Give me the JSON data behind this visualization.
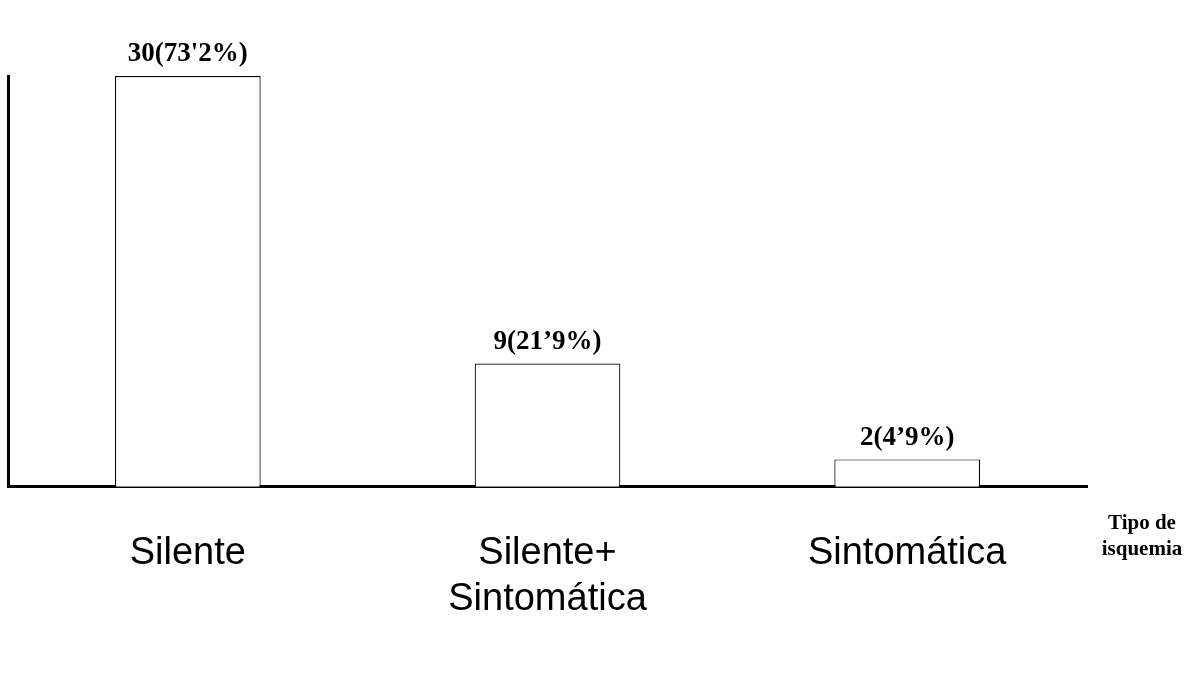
{
  "chart_data": {
    "type": "bar",
    "xlabel": "Tipo de\nisquemia",
    "categories": [
      "Silente",
      "Silente+\nSintomática",
      "Sintomática"
    ],
    "values": [
      30,
      9,
      2
    ],
    "value_labels": [
      "30(73'2%)",
      "9(21’9%)",
      "2(4’9%)"
    ],
    "color": "#ffffff",
    "grid": false,
    "legend": false,
    "tick_labels": "x"
  }
}
